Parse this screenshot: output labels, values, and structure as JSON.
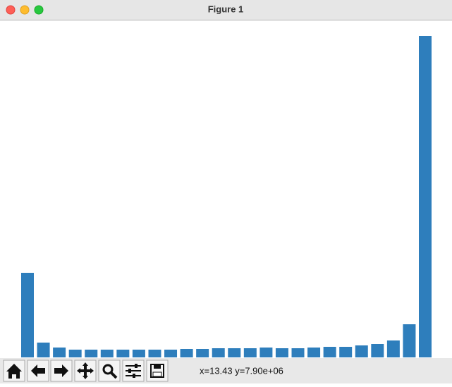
{
  "window": {
    "title": "Figure 1"
  },
  "chart_data": {
    "type": "bar",
    "categories": [
      null,
      null,
      null,
      null,
      null,
      null,
      null,
      null,
      null,
      null,
      null,
      null,
      null,
      null,
      null,
      null,
      null,
      null,
      null,
      null,
      null,
      null,
      null,
      null,
      null,
      null
    ],
    "values": [
      120,
      21,
      14,
      11,
      11,
      11,
      11,
      11,
      11,
      11,
      12,
      12,
      13,
      13,
      13,
      14,
      13,
      13,
      14,
      15,
      15,
      17,
      19,
      24,
      47,
      456
    ],
    "color": "#2e7ebc",
    "ylim": [
      0,
      478
    ]
  },
  "toolbar": {
    "status": "x=13.43 y=7.90e+06"
  }
}
